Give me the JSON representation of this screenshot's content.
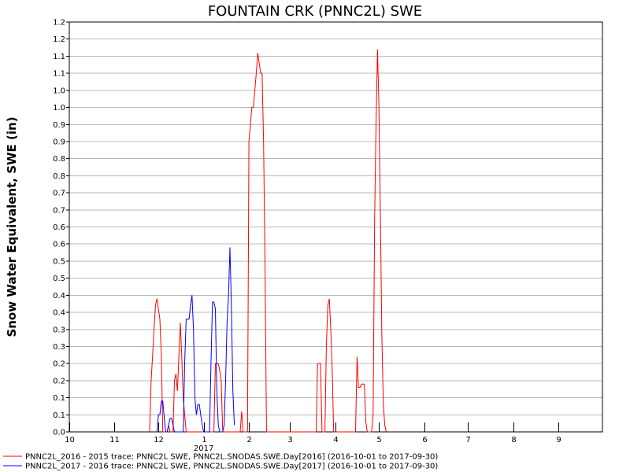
{
  "chart_data": {
    "type": "line",
    "title": "FOUNTAIN CRK (PNNC2L) SWE",
    "ylabel": "Snow Water Equivalent, SWE (in)",
    "xlabel": "",
    "xlim": [
      "2016-10-01",
      "2017-09-30"
    ],
    "ylim": [
      0,
      1.2
    ],
    "grid": true,
    "legend_position": "bottom",
    "y_ticks": [
      "0.0",
      "0.1",
      "0.1",
      "0.2",
      "0.2",
      "0.3",
      "0.3",
      "0.4",
      "0.4",
      "0.5",
      "0.5",
      "0.6",
      "0.6",
      "0.7",
      "0.7",
      "0.8",
      "0.8",
      "0.9",
      "0.9",
      "1.0",
      "1.0",
      "1.1",
      "1.1",
      "1.2",
      "1.2"
    ],
    "x_ticks": [
      {
        "label": "10",
        "date": "2016-10-01"
      },
      {
        "label": "11",
        "date": "2016-11-01"
      },
      {
        "label": "12",
        "date": "2016-12-01"
      },
      {
        "label": "1",
        "date": "2017-01-01"
      },
      {
        "label": "2",
        "date": "2017-02-01"
      },
      {
        "label": "3",
        "date": "2017-03-01"
      },
      {
        "label": "4",
        "date": "2017-04-01"
      },
      {
        "label": "5",
        "date": "2017-05-01"
      },
      {
        "label": "6",
        "date": "2017-06-01"
      },
      {
        "label": "7",
        "date": "2017-07-01"
      },
      {
        "label": "8",
        "date": "2017-08-01"
      },
      {
        "label": "9",
        "date": "2017-09-01"
      }
    ],
    "year_label": {
      "text": "2017",
      "date": "2017-01-01"
    },
    "series": [
      {
        "name": "PNNC2L_2016 - 2015 trace: PNNC2L SWE, PNNC2L.SNODAS.SWE.Day[2016] (2016-10-01 to 2017-09-30)",
        "color": "#ff0000",
        "points": [
          {
            "x": "2016-11-25",
            "y": 0
          },
          {
            "x": "2016-11-26",
            "y": 0.15
          },
          {
            "x": "2016-11-27",
            "y": 0.22
          },
          {
            "x": "2016-11-28",
            "y": 0.3
          },
          {
            "x": "2016-11-29",
            "y": 0.37
          },
          {
            "x": "2016-11-30",
            "y": 0.39
          },
          {
            "x": "2016-12-01",
            "y": 0.36
          },
          {
            "x": "2016-12-02",
            "y": 0.33
          },
          {
            "x": "2016-12-03",
            "y": 0.22
          },
          {
            "x": "2016-12-04",
            "y": 0
          },
          {
            "x": "2016-12-07",
            "y": 0
          },
          {
            "x": "2016-12-08",
            "y": 0.02
          },
          {
            "x": "2016-12-09",
            "y": 0
          },
          {
            "x": "2016-12-11",
            "y": 0
          },
          {
            "x": "2016-12-12",
            "y": 0.15
          },
          {
            "x": "2016-12-13",
            "y": 0.17
          },
          {
            "x": "2016-12-14",
            "y": 0.12
          },
          {
            "x": "2016-12-15",
            "y": 0.22
          },
          {
            "x": "2016-12-16",
            "y": 0.32
          },
          {
            "x": "2016-12-17",
            "y": 0.22
          },
          {
            "x": "2016-12-18",
            "y": 0.1
          },
          {
            "x": "2016-12-19",
            "y": 0.05
          },
          {
            "x": "2016-12-20",
            "y": 0
          },
          {
            "x": "2017-01-08",
            "y": 0
          },
          {
            "x": "2017-01-09",
            "y": 0.2
          },
          {
            "x": "2017-01-10",
            "y": 0.2
          },
          {
            "x": "2017-01-11",
            "y": 0.2
          },
          {
            "x": "2017-01-12",
            "y": 0.18
          },
          {
            "x": "2017-01-13",
            "y": 0.15
          },
          {
            "x": "2017-01-14",
            "y": 0
          },
          {
            "x": "2017-01-26",
            "y": 0
          },
          {
            "x": "2017-01-27",
            "y": 0.06
          },
          {
            "x": "2017-01-28",
            "y": 0
          },
          {
            "x": "2017-01-31",
            "y": 0
          },
          {
            "x": "2017-02-01",
            "y": 0.85
          },
          {
            "x": "2017-02-02",
            "y": 0.9
          },
          {
            "x": "2017-02-03",
            "y": 0.95
          },
          {
            "x": "2017-02-04",
            "y": 0.95
          },
          {
            "x": "2017-02-05",
            "y": 1.0
          },
          {
            "x": "2017-02-06",
            "y": 1.05
          },
          {
            "x": "2017-02-07",
            "y": 1.11
          },
          {
            "x": "2017-02-08",
            "y": 1.08
          },
          {
            "x": "2017-02-09",
            "y": 1.05
          },
          {
            "x": "2017-02-10",
            "y": 1.05
          },
          {
            "x": "2017-02-11",
            "y": 0.85
          },
          {
            "x": "2017-02-12",
            "y": 0.5
          },
          {
            "x": "2017-02-13",
            "y": 0
          },
          {
            "x": "2017-03-19",
            "y": 0
          },
          {
            "x": "2017-03-20",
            "y": 0.2
          },
          {
            "x": "2017-03-21",
            "y": 0.2
          },
          {
            "x": "2017-03-22",
            "y": 0.2
          },
          {
            "x": "2017-03-23",
            "y": 0
          },
          {
            "x": "2017-03-25",
            "y": 0
          },
          {
            "x": "2017-03-26",
            "y": 0.25
          },
          {
            "x": "2017-03-27",
            "y": 0.37
          },
          {
            "x": "2017-03-28",
            "y": 0.39
          },
          {
            "x": "2017-03-29",
            "y": 0.3
          },
          {
            "x": "2017-03-30",
            "y": 0.18
          },
          {
            "x": "2017-03-31",
            "y": 0
          },
          {
            "x": "2017-04-15",
            "y": 0
          },
          {
            "x": "2017-04-16",
            "y": 0.22
          },
          {
            "x": "2017-04-17",
            "y": 0.13
          },
          {
            "x": "2017-04-18",
            "y": 0.13
          },
          {
            "x": "2017-04-19",
            "y": 0.14
          },
          {
            "x": "2017-04-20",
            "y": 0.14
          },
          {
            "x": "2017-04-21",
            "y": 0.14
          },
          {
            "x": "2017-04-22",
            "y": 0.03
          },
          {
            "x": "2017-04-23",
            "y": 0
          },
          {
            "x": "2017-04-26",
            "y": 0
          },
          {
            "x": "2017-04-27",
            "y": 0.05
          },
          {
            "x": "2017-04-28",
            "y": 0.62
          },
          {
            "x": "2017-04-29",
            "y": 0.9
          },
          {
            "x": "2017-04-30",
            "y": 1.12
          },
          {
            "x": "2017-05-01",
            "y": 0.95
          },
          {
            "x": "2017-05-02",
            "y": 0.62
          },
          {
            "x": "2017-05-03",
            "y": 0.28
          },
          {
            "x": "2017-05-04",
            "y": 0.08
          },
          {
            "x": "2017-05-05",
            "y": 0.02
          },
          {
            "x": "2017-05-06",
            "y": 0
          }
        ]
      },
      {
        "name": "PNNC2L_2017 - 2016 trace: PNNC2L SWE, PNNC2L.SNODAS.SWE.Day[2017] (2016-10-01 to 2017-09-30)",
        "color": "#0000ff",
        "points": [
          {
            "x": "2016-11-30",
            "y": 0
          },
          {
            "x": "2016-12-01",
            "y": 0.05
          },
          {
            "x": "2016-12-02",
            "y": 0.05
          },
          {
            "x": "2016-12-03",
            "y": 0.09
          },
          {
            "x": "2016-12-04",
            "y": 0.09
          },
          {
            "x": "2016-12-05",
            "y": 0.04
          },
          {
            "x": "2016-12-06",
            "y": 0
          },
          {
            "x": "2016-12-07",
            "y": 0
          },
          {
            "x": "2016-12-08",
            "y": 0.02
          },
          {
            "x": "2016-12-09",
            "y": 0.04
          },
          {
            "x": "2016-12-10",
            "y": 0.04
          },
          {
            "x": "2016-12-11",
            "y": 0.02
          },
          {
            "x": "2016-12-12",
            "y": 0
          },
          {
            "x": "2016-12-18",
            "y": 0
          },
          {
            "x": "2016-12-19",
            "y": 0.2
          },
          {
            "x": "2016-12-20",
            "y": 0.33
          },
          {
            "x": "2016-12-21",
            "y": 0.33
          },
          {
            "x": "2016-12-22",
            "y": 0.33
          },
          {
            "x": "2016-12-23",
            "y": 0.37
          },
          {
            "x": "2016-12-24",
            "y": 0.4
          },
          {
            "x": "2016-12-25",
            "y": 0.3
          },
          {
            "x": "2016-12-26",
            "y": 0.1
          },
          {
            "x": "2016-12-27",
            "y": 0.05
          },
          {
            "x": "2016-12-28",
            "y": 0.08
          },
          {
            "x": "2016-12-29",
            "y": 0.08
          },
          {
            "x": "2016-12-30",
            "y": 0.05
          },
          {
            "x": "2016-12-31",
            "y": 0.02
          },
          {
            "x": "2017-01-01",
            "y": 0
          },
          {
            "x": "2017-01-05",
            "y": 0
          },
          {
            "x": "2017-01-06",
            "y": 0.2
          },
          {
            "x": "2017-01-07",
            "y": 0.38
          },
          {
            "x": "2017-01-08",
            "y": 0.38
          },
          {
            "x": "2017-01-09",
            "y": 0.36
          },
          {
            "x": "2017-01-10",
            "y": 0.12
          },
          {
            "x": "2017-01-11",
            "y": 0.02
          },
          {
            "x": "2017-01-12",
            "y": 0
          },
          {
            "x": "2017-01-14",
            "y": 0
          },
          {
            "x": "2017-01-15",
            "y": 0.02
          },
          {
            "x": "2017-01-16",
            "y": 0.15
          },
          {
            "x": "2017-01-17",
            "y": 0.32
          },
          {
            "x": "2017-01-18",
            "y": 0.4
          },
          {
            "x": "2017-01-19",
            "y": 0.54
          },
          {
            "x": "2017-01-20",
            "y": 0.36
          },
          {
            "x": "2017-01-21",
            "y": 0.12
          },
          {
            "x": "2017-01-22",
            "y": 0.02
          }
        ]
      }
    ]
  }
}
